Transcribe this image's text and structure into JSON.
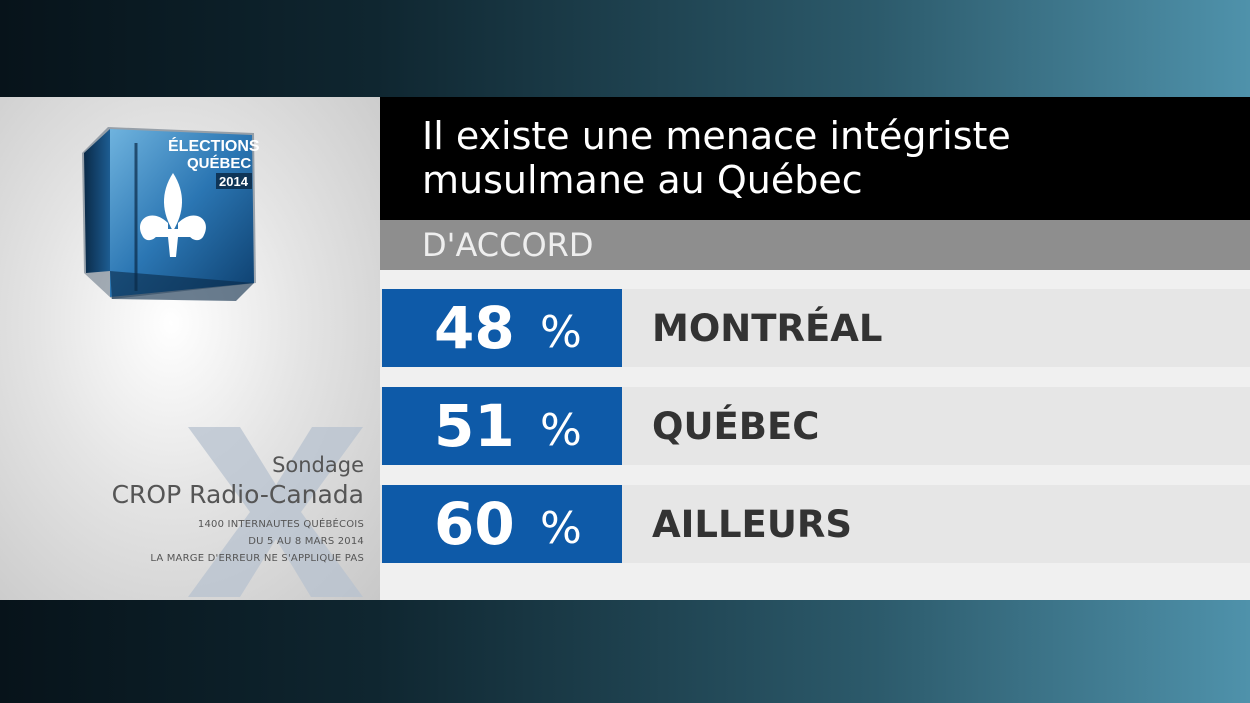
{
  "logo": {
    "line1": "ÉLECTIONS",
    "line2": "QUÉBEC",
    "line3": "2014"
  },
  "credit": {
    "sondage": "Sondage",
    "source": "CROP Radio-Canada",
    "note1": "1400 INTERNAUTES QUÉBÉCOIS",
    "note2": "DU 5 AU 8 MARS 2014",
    "note3": "LA MARGE D'ERREUR NE S'APPLIQUE PAS"
  },
  "header": {
    "title": "Il existe une menace intégriste musulmane au Québec",
    "subheader": "D'ACCORD"
  },
  "chart_data": {
    "type": "table",
    "title": "Il existe une menace intégriste musulmane au Québec",
    "subtitle": "D'ACCORD",
    "unit": "%",
    "rows": [
      {
        "region": "MONTRÉAL",
        "value": "48"
      },
      {
        "region": "QUÉBEC",
        "value": "51"
      },
      {
        "region": "AILLEURS",
        "value": "60"
      }
    ]
  },
  "colors": {
    "accent_blue": "#0e5aa8",
    "title_bar": "#000000",
    "subheader_bar": "#8e8e8e"
  }
}
